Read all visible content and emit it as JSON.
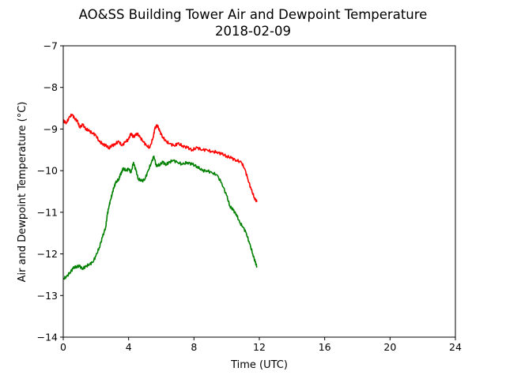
{
  "chart_data": {
    "type": "line",
    "title": "AO&SS Building Tower Air and Dewpoint Temperature",
    "subtitle": "2018-02-09",
    "xlabel": "Time (UTC)",
    "ylabel": "Air and Dewpoint Temperature (°C)",
    "xlim": [
      0,
      24
    ],
    "ylim": [
      -14,
      -7
    ],
    "x_ticks": [
      0,
      4,
      8,
      12,
      16,
      20,
      24
    ],
    "x_tick_labels": [
      "0",
      "4",
      "8",
      "12",
      "16",
      "20",
      "24"
    ],
    "y_ticks": [
      -14,
      -13,
      -12,
      -11,
      -10,
      -9,
      -8,
      -7
    ],
    "y_tick_labels": [
      "−14",
      "−13",
      "−12",
      "−11",
      "−10",
      "−9",
      "−8",
      "−7"
    ],
    "grid": false,
    "legend": "none",
    "colors": {
      "air": "#ff0000",
      "dewpoint": "#008000"
    },
    "series": [
      {
        "color": "#ff0000",
        "x": [
          0,
          0.2,
          0.4,
          0.55,
          0.7,
          0.85,
          1.0,
          1.2,
          1.4,
          1.6,
          1.8,
          2.0,
          2.2,
          2.4,
          2.6,
          2.8,
          3.0,
          3.2,
          3.4,
          3.6,
          3.8,
          4.0,
          4.15,
          4.3,
          4.5,
          4.7,
          4.9,
          5.1,
          5.3,
          5.5,
          5.6,
          5.75,
          5.9,
          6.1,
          6.3,
          6.5,
          6.8,
          7.0,
          7.3,
          7.6,
          7.9,
          8.2,
          8.5,
          8.8,
          9.1,
          9.4,
          9.7,
          10.0,
          10.3,
          10.6,
          10.9,
          11.1,
          11.3,
          11.5,
          11.7,
          11.85
        ],
        "values": [
          -8.8,
          -8.85,
          -8.7,
          -8.65,
          -8.75,
          -8.8,
          -8.95,
          -8.9,
          -9.0,
          -9.05,
          -9.1,
          -9.15,
          -9.3,
          -9.35,
          -9.4,
          -9.45,
          -9.4,
          -9.35,
          -9.3,
          -9.4,
          -9.3,
          -9.25,
          -9.1,
          -9.2,
          -9.1,
          -9.2,
          -9.3,
          -9.4,
          -9.45,
          -9.2,
          -9.0,
          -8.9,
          -9.05,
          -9.2,
          -9.3,
          -9.35,
          -9.4,
          -9.35,
          -9.4,
          -9.45,
          -9.5,
          -9.45,
          -9.5,
          -9.5,
          -9.55,
          -9.55,
          -9.6,
          -9.65,
          -9.7,
          -9.75,
          -9.8,
          -9.95,
          -10.2,
          -10.45,
          -10.65,
          -10.75
        ]
      },
      {
        "color": "#008000",
        "x": [
          0,
          0.2,
          0.4,
          0.6,
          0.8,
          1.0,
          1.2,
          1.4,
          1.6,
          1.8,
          2.0,
          2.2,
          2.4,
          2.6,
          2.7,
          2.8,
          2.9,
          3.0,
          3.1,
          3.2,
          3.4,
          3.5,
          3.6,
          3.7,
          3.85,
          4.0,
          4.15,
          4.3,
          4.45,
          4.6,
          4.8,
          5.0,
          5.2,
          5.4,
          5.55,
          5.7,
          5.9,
          6.1,
          6.3,
          6.5,
          6.7,
          7.0,
          7.3,
          7.6,
          7.9,
          8.2,
          8.5,
          8.8,
          9.1,
          9.4,
          9.7,
          10.0,
          10.2,
          10.4,
          10.6,
          10.8,
          11.0,
          11.2,
          11.4,
          11.6,
          11.75,
          11.85
        ],
        "values": [
          -12.6,
          -12.55,
          -12.45,
          -12.35,
          -12.3,
          -12.3,
          -12.35,
          -12.3,
          -12.25,
          -12.2,
          -12.05,
          -11.85,
          -11.6,
          -11.35,
          -11.05,
          -10.85,
          -10.7,
          -10.55,
          -10.4,
          -10.3,
          -10.2,
          -10.1,
          -10.0,
          -9.95,
          -10.0,
          -9.95,
          -10.05,
          -9.8,
          -10.0,
          -10.2,
          -10.25,
          -10.2,
          -10.0,
          -9.8,
          -9.65,
          -9.9,
          -9.85,
          -9.8,
          -9.85,
          -9.8,
          -9.75,
          -9.8,
          -9.85,
          -9.8,
          -9.85,
          -9.9,
          -10.0,
          -10.0,
          -10.05,
          -10.1,
          -10.3,
          -10.6,
          -10.85,
          -10.95,
          -11.05,
          -11.25,
          -11.35,
          -11.5,
          -11.75,
          -12.0,
          -12.2,
          -12.3
        ]
      }
    ]
  }
}
